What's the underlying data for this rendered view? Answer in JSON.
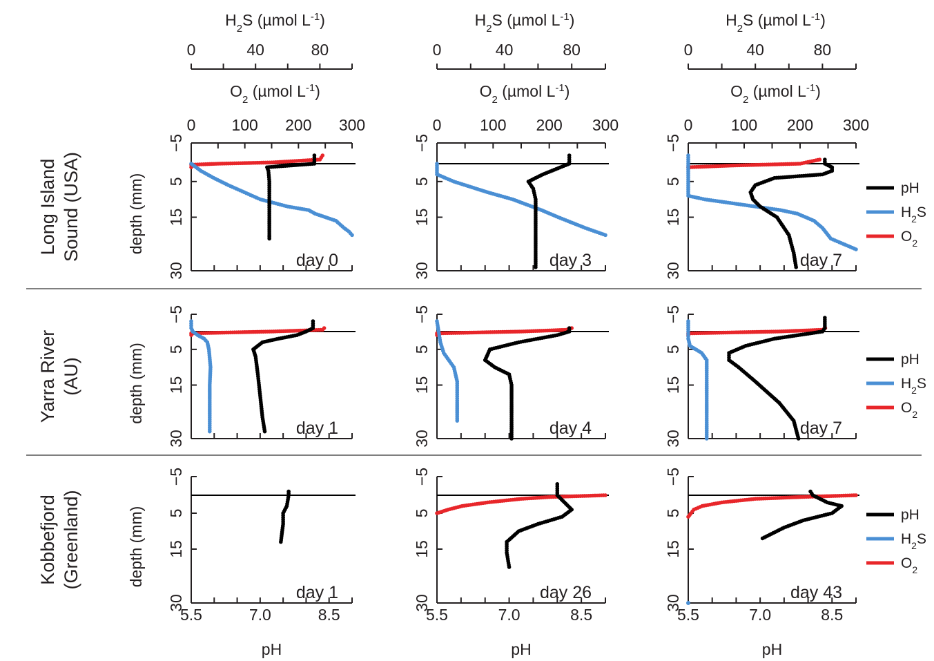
{
  "chart_data": {
    "type": "scatter",
    "axes_text": {
      "h2s_title": "H2S (µmol L-1)",
      "o2_title": "O2 (µmol L-1)",
      "ph_title": "pH",
      "depth_title": "depth (mm)"
    },
    "axes": {
      "ph": {
        "lim": [
          5.5,
          9.0
        ],
        "ticks": [
          "5.5",
          "7.0",
          "8.5"
        ],
        "tick_values": [
          5.5,
          7.0,
          8.5
        ]
      },
      "o2": {
        "lim": [
          0,
          300
        ],
        "ticks": [
          "0",
          "100",
          "200",
          "300"
        ],
        "tick_values": [
          0,
          100,
          200,
          300
        ]
      },
      "h2s": {
        "lim": [
          0,
          100
        ],
        "ticks": [
          "0",
          "40",
          "80"
        ],
        "tick_values": [
          0,
          40,
          80
        ]
      },
      "depth": {
        "lim": [
          -5,
          30
        ],
        "ticks": [
          "−5",
          "5",
          "15",
          "30"
        ],
        "tick_values": [
          -5,
          5,
          15,
          30
        ],
        "inverted": true
      }
    },
    "legend": {
      "items": [
        "pH",
        "H2S",
        "O2"
      ],
      "placement": "right of each row"
    },
    "series_colors": {
      "pH": "#000000",
      "H2S": "#4a8fd4",
      "O2": "#e8262a"
    },
    "rows": [
      {
        "label_lines": [
          "Long Island",
          "Sound (USA)"
        ],
        "panels": [
          {
            "day": "day 0",
            "pH": [
              [
                -2,
                8.18
              ],
              [
                -1,
                8.18
              ],
              [
                0,
                8.18
              ],
              [
                1,
                7.15
              ],
              [
                2,
                7.18
              ],
              [
                5,
                7.2
              ],
              [
                10,
                7.2
              ],
              [
                15,
                7.2
              ],
              [
                20,
                7.2
              ],
              [
                21,
                7.2
              ]
            ],
            "H2S": [
              [
                0,
                0
              ],
              [
                2,
                6
              ],
              [
                4,
                14
              ],
              [
                6,
                23
              ],
              [
                8,
                33
              ],
              [
                10,
                43
              ],
              [
                12,
                60
              ],
              [
                13,
                73
              ],
              [
                14,
                77
              ],
              [
                16,
                90
              ],
              [
                18,
                95
              ],
              [
                19,
                98
              ],
              [
                20,
                100
              ]
            ],
            "O2": [
              [
                -2,
                245
              ],
              [
                -1,
                240
              ],
              [
                -0.3,
                150
              ],
              [
                0,
                50
              ],
              [
                0.3,
                0
              ],
              [
                1,
                0
              ]
            ]
          },
          {
            "day": "day 3",
            "pH": [
              [
                -2,
                8.25
              ],
              [
                0,
                8.25
              ],
              [
                3,
                7.7
              ],
              [
                5,
                7.4
              ],
              [
                7,
                7.5
              ],
              [
                10,
                7.55
              ],
              [
                15,
                7.55
              ],
              [
                20,
                7.55
              ],
              [
                29,
                7.55
              ]
            ],
            "H2S": [
              [
                0,
                0
              ],
              [
                3,
                0
              ],
              [
                5,
                10
              ],
              [
                8,
                30
              ],
              [
                10,
                45
              ],
              [
                13,
                62
              ],
              [
                15,
                72
              ],
              [
                18,
                88
              ],
              [
                20,
                100
              ]
            ],
            "O2": []
          },
          {
            "day": "day 7",
            "pH": [
              [
                -1,
                8.35
              ],
              [
                0,
                8.35
              ],
              [
                1,
                8.5
              ],
              [
                2,
                8.5
              ],
              [
                3,
                8.3
              ],
              [
                4,
                7.3
              ],
              [
                6,
                6.9
              ],
              [
                8,
                6.8
              ],
              [
                10,
                6.85
              ],
              [
                12,
                7.0
              ],
              [
                15,
                7.35
              ],
              [
                20,
                7.6
              ],
              [
                25,
                7.7
              ],
              [
                29,
                7.75
              ]
            ],
            "H2S": [
              [
                -2,
                0
              ],
              [
                0,
                0
              ],
              [
                5,
                0
              ],
              [
                9,
                0
              ],
              [
                10,
                10
              ],
              [
                11,
                25
              ],
              [
                12,
                40
              ],
              [
                13,
                55
              ],
              [
                14,
                65
              ],
              [
                16,
                75
              ],
              [
                18,
                80
              ],
              [
                21,
                85
              ],
              [
                22,
                90
              ],
              [
                24,
                100
              ]
            ],
            "O2": [
              [
                -1,
                235
              ],
              [
                0,
                200
              ],
              [
                0.5,
                80
              ],
              [
                1,
                0
              ]
            ]
          }
        ]
      },
      {
        "label_lines": [
          "Yarra River",
          "(AU)"
        ],
        "panels": [
          {
            "day": "day 1",
            "pH": [
              [
                -3,
                8.15
              ],
              [
                -1,
                8.15
              ],
              [
                0,
                8.0
              ],
              [
                1,
                7.8
              ],
              [
                2,
                7.4
              ],
              [
                3,
                7.05
              ],
              [
                5,
                6.85
              ],
              [
                7,
                6.9
              ],
              [
                12,
                6.95
              ],
              [
                18,
                7.0
              ],
              [
                24,
                7.05
              ],
              [
                28,
                7.1
              ]
            ],
            "H2S": [
              [
                -3,
                0
              ],
              [
                -1,
                0
              ],
              [
                0,
                1
              ],
              [
                1,
                4
              ],
              [
                2,
                8
              ],
              [
                3,
                10
              ],
              [
                5,
                11
              ],
              [
                10,
                12
              ],
              [
                15,
                11.5
              ],
              [
                20,
                11.5
              ],
              [
                28,
                11.5
              ]
            ],
            "O2": [
              [
                -1,
                248
              ],
              [
                -0.5,
                245
              ],
              [
                0,
                150
              ],
              [
                0.5,
                0
              ],
              [
                1,
                0
              ]
            ]
          },
          {
            "day": "day 4",
            "pH": [
              [
                -1,
                8.25
              ],
              [
                0,
                8.25
              ],
              [
                1,
                8.0
              ],
              [
                2,
                7.6
              ],
              [
                3,
                7.2
              ],
              [
                5,
                6.6
              ],
              [
                8,
                6.5
              ],
              [
                10,
                6.7
              ],
              [
                12,
                7.0
              ],
              [
                15,
                7.05
              ],
              [
                20,
                7.05
              ],
              [
                25,
                7.05
              ],
              [
                30,
                7.05
              ]
            ],
            "H2S": [
              [
                -3,
                0
              ],
              [
                0,
                1
              ],
              [
                3,
                2
              ],
              [
                6,
                4
              ],
              [
                10,
                10
              ],
              [
                14,
                12
              ],
              [
                20,
                12
              ],
              [
                25,
                12
              ]
            ],
            "O2": [
              [
                -1,
                240
              ],
              [
                -0.5,
                230
              ],
              [
                0,
                150
              ],
              [
                0.5,
                0
              ],
              [
                1,
                0
              ]
            ]
          },
          {
            "day": "day 7",
            "pH": [
              [
                -4,
                8.35
              ],
              [
                -1,
                8.35
              ],
              [
                0,
                8.3
              ],
              [
                1,
                7.8
              ],
              [
                2,
                7.3
              ],
              [
                4,
                6.7
              ],
              [
                6,
                6.35
              ],
              [
                8,
                6.35
              ],
              [
                10,
                6.55
              ],
              [
                14,
                6.9
              ],
              [
                20,
                7.4
              ],
              [
                25,
                7.7
              ],
              [
                30,
                7.8
              ]
            ],
            "H2S": [
              [
                -3,
                0
              ],
              [
                0,
                0
              ],
              [
                2,
                0
              ],
              [
                4,
                1
              ],
              [
                6,
                8
              ],
              [
                8,
                11
              ],
              [
                12,
                11
              ],
              [
                16,
                11
              ],
              [
                20,
                11
              ],
              [
                25,
                11
              ],
              [
                30,
                11
              ]
            ],
            "O2": [
              [
                -1,
                245
              ],
              [
                -0.5,
                240
              ],
              [
                0,
                160
              ],
              [
                0.5,
                0
              ],
              [
                1,
                0
              ]
            ]
          }
        ]
      },
      {
        "label_lines": [
          "Kobbefjord",
          "(Greenland)"
        ],
        "panels": [
          {
            "day": "day 1",
            "pH": [
              [
                -1,
                7.62
              ],
              [
                0,
                7.62
              ],
              [
                3,
                7.58
              ],
              [
                5,
                7.5
              ],
              [
                8,
                7.5
              ],
              [
                13,
                7.45
              ]
            ],
            "H2S": [],
            "O2": []
          },
          {
            "day": "day 26",
            "pH": [
              [
                -3,
                8.0
              ],
              [
                0,
                8.0
              ],
              [
                2,
                8.15
              ],
              [
                4,
                8.3
              ],
              [
                6,
                8.1
              ],
              [
                8,
                7.6
              ],
              [
                10,
                7.2
              ],
              [
                13,
                6.95
              ],
              [
                16,
                6.95
              ],
              [
                20,
                7.0
              ]
            ],
            "H2S": [],
            "O2": [
              [
                0,
                300
              ],
              [
                0.5,
                200
              ],
              [
                1,
                150
              ],
              [
                2,
                90
              ],
              [
                3,
                45
              ],
              [
                4,
                20
              ],
              [
                5,
                0
              ]
            ]
          },
          {
            "day": "day 43",
            "pH": [
              [
                -1,
                8.05
              ],
              [
                0,
                8.1
              ],
              [
                2,
                8.4
              ],
              [
                3,
                8.7
              ],
              [
                5,
                8.5
              ],
              [
                7,
                7.9
              ],
              [
                9,
                7.5
              ],
              [
                11,
                7.2
              ],
              [
                12,
                7.05
              ]
            ],
            "H2S": [
              [
                30,
                0
              ]
            ],
            "O2": [
              [
                0,
                300
              ],
              [
                0.5,
                200
              ],
              [
                1,
                120
              ],
              [
                2,
                60
              ],
              [
                3,
                25
              ],
              [
                4,
                10
              ],
              [
                5,
                5
              ],
              [
                6,
                0
              ]
            ]
          }
        ]
      }
    ]
  }
}
